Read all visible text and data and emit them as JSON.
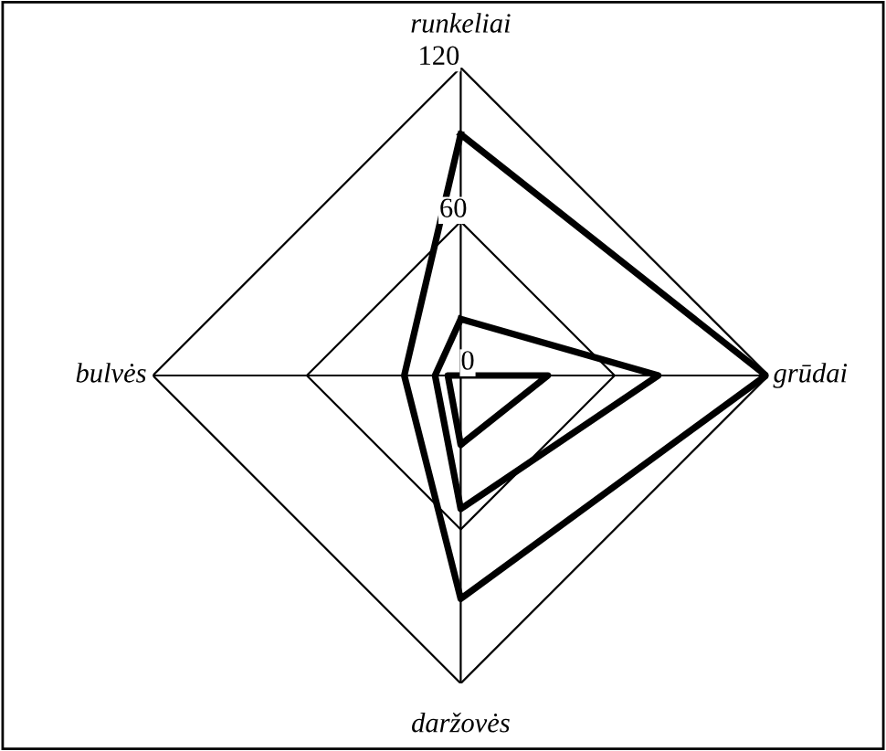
{
  "chart_data": {
    "type": "radar",
    "categories": [
      "runkeliai",
      "grūdai",
      "daržovės",
      "bulvės"
    ],
    "series": [
      {
        "color": "#000000",
        "values": [
          94,
          119,
          87,
          22
        ]
      },
      {
        "color": "#000000",
        "values": [
          22,
          77,
          52,
          10
        ]
      },
      {
        "color": "#000000",
        "values": [
          0,
          34,
          27,
          5
        ]
      }
    ],
    "ylim": [
      0,
      120
    ],
    "yticks": [
      0,
      60,
      120
    ],
    "grid": true,
    "marker": "none",
    "line_style": "solid"
  }
}
